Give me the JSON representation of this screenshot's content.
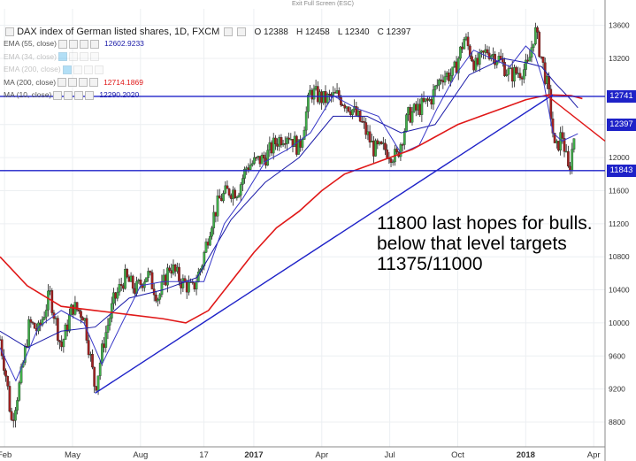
{
  "window": {
    "exit_fullscreen_label": "Exit Full Screen (ESC)"
  },
  "legend": {
    "title": "DAX index of German listed shares, 1D, FXCM",
    "ohlc": {
      "open": "O 12388",
      "high": "H 12458",
      "low": "L 12340",
      "close": "C 12397"
    },
    "indicators": [
      {
        "label": "EMA (55, close)",
        "value": "12602.9233",
        "color": "#1a1aa8",
        "active": false,
        "dim": false
      },
      {
        "label": "EMA (34, close)",
        "value": "",
        "color": "#999999",
        "active": true,
        "dim": true
      },
      {
        "label": "EMA (200, close)",
        "value": "",
        "color": "#999999",
        "active": true,
        "dim": true
      },
      {
        "label": "MA (200, close)",
        "value": "12714.1869",
        "color": "#e01818",
        "active": false,
        "dim": false
      },
      {
        "label": "MA (10, close)",
        "value": "12290.2020",
        "color": "#1a1aa8",
        "active": false,
        "dim": false
      }
    ]
  },
  "annotation": {
    "text": "11800 last hopes for bulls. below that level targets 11375/11000"
  },
  "price_tags": [
    {
      "label": "12741",
      "value": 12741,
      "color": "#1e22c8"
    },
    {
      "label": "12397",
      "value": 12397,
      "color": "#1e22c8"
    },
    {
      "label": "11843",
      "value": 11843,
      "color": "#1e22c8"
    }
  ],
  "chart_data": {
    "type": "line",
    "title": "DAX index of German listed shares, 1D, FXCM",
    "xlabel": "",
    "ylabel": "",
    "ylim": [
      8500,
      13800
    ],
    "y_ticks": [
      8800,
      9200,
      9600,
      10000,
      10400,
      10800,
      11200,
      11600,
      12000,
      12400,
      13200,
      13600
    ],
    "x_tick_labels": [
      "Feb",
      "May",
      "Aug",
      "17",
      "2017",
      "Apr",
      "Jul",
      "Oct",
      "2018",
      "Apr"
    ],
    "x_tick_positions": [
      0.5,
      3.5,
      6.5,
      9.3,
      11.5,
      14.5,
      17.5,
      20.5,
      23.5,
      26.5
    ],
    "xlim": [
      0.3,
      27.0
    ],
    "grid": true,
    "series": [
      {
        "name": "DAX",
        "style": "candles",
        "x": [
          0.3,
          0.6,
          0.8,
          1.2,
          1.6,
          2.0,
          2.5,
          3.0,
          3.5,
          4.0,
          4.5,
          4.9,
          5.3,
          5.8,
          6.3,
          6.8,
          7.3,
          7.8,
          8.3,
          8.8,
          9.2,
          9.6,
          10.0,
          10.4,
          10.8,
          11.2,
          11.6,
          12.0,
          12.5,
          13.0,
          13.5,
          14.0,
          14.6,
          15.2,
          15.8,
          16.3,
          16.8,
          17.3,
          17.8,
          18.3,
          18.8,
          19.3,
          19.8,
          20.3,
          20.8,
          21.3,
          21.8,
          22.3,
          22.8,
          23.3,
          23.6,
          23.9,
          24.2,
          24.5,
          24.8,
          25.1,
          25.4,
          25.7
        ],
        "values": [
          9800,
          9300,
          8800,
          9300,
          10000,
          9900,
          10350,
          9700,
          10200,
          10100,
          9200,
          9800,
          10250,
          10550,
          10400,
          10600,
          10300,
          10700,
          10500,
          10400,
          10700,
          11200,
          11500,
          11600,
          11600,
          11900,
          11950,
          12000,
          12200,
          12300,
          12100,
          12800,
          12700,
          12750,
          12600,
          12400,
          12100,
          12100,
          12000,
          12500,
          12600,
          12700,
          13000,
          13000,
          13450,
          13100,
          13300,
          13200,
          13000,
          13050,
          13100,
          13550,
          13200,
          12800,
          12050,
          12300,
          11800,
          12397
        ]
      },
      {
        "name": "EMA (55, close)",
        "style": "line",
        "x": [
          0.3,
          1.5,
          3.0,
          4.5,
          6.0,
          7.5,
          9.0,
          10.5,
          12.0,
          13.5,
          15.0,
          16.5,
          18.0,
          19.5,
          21.0,
          22.5,
          23.5,
          24.2,
          24.8,
          25.5,
          25.8
        ],
        "values": [
          9900,
          9700,
          9900,
          9950,
          10300,
          10400,
          10550,
          11250,
          11700,
          12000,
          12500,
          12500,
          12300,
          12400,
          13000,
          13200,
          13150,
          13100,
          12900,
          12700,
          12603
        ]
      },
      {
        "name": "MA (10, close)",
        "style": "line",
        "x": [
          0.3,
          1.0,
          2.0,
          3.0,
          4.0,
          4.8,
          5.6,
          6.5,
          7.5,
          8.5,
          9.3,
          10.2,
          11.0,
          12.0,
          13.0,
          14.0,
          15.0,
          16.0,
          17.0,
          18.0,
          18.8,
          19.6,
          20.4,
          21.2,
          22.0,
          22.8,
          23.5,
          23.9,
          24.3,
          24.7,
          25.1,
          25.5,
          25.8
        ],
        "values": [
          9700,
          9300,
          9950,
          10150,
          10000,
          9500,
          9950,
          10450,
          10500,
          10500,
          10500,
          11200,
          11500,
          11950,
          12100,
          12300,
          12750,
          12600,
          12500,
          12050,
          12150,
          12600,
          13000,
          13300,
          13200,
          13100,
          13350,
          13250,
          12900,
          12300,
          12200,
          12250,
          12290
        ]
      },
      {
        "name": "MA (200, close)",
        "style": "line",
        "x": [
          0.3,
          1.5,
          3.0,
          4.5,
          6.0,
          7.5,
          8.5,
          9.5,
          10.5,
          11.5,
          12.5,
          13.5,
          14.5,
          15.5,
          16.5,
          17.5,
          18.5,
          19.5,
          20.5,
          21.5,
          22.5,
          23.5,
          24.5,
          25.5,
          26.0
        ],
        "values": [
          10800,
          10450,
          10200,
          10150,
          10100,
          10050,
          10000,
          10150,
          10500,
          10850,
          11150,
          11350,
          11600,
          11800,
          11900,
          12000,
          12100,
          12250,
          12400,
          12500,
          12600,
          12700,
          12760,
          12750,
          12714
        ]
      }
    ],
    "trendlines": [
      {
        "name": "support-trendline",
        "color": "#1e22c8",
        "x": [
          4.5,
          24.7
        ],
        "values": [
          9150,
          12760
        ]
      },
      {
        "name": "resistance-level-12741",
        "color": "#1e22c8",
        "x": [
          0.3,
          27.0
        ],
        "values": [
          12741,
          12741
        ]
      },
      {
        "name": "resistance-level-11843",
        "color": "#1e22c8",
        "x": [
          0.3,
          27.0
        ],
        "values": [
          11843,
          11843
        ]
      },
      {
        "name": "descending-trendline",
        "color": "#e01818",
        "x": [
          24.4,
          27.0
        ],
        "values": [
          12760,
          12200
        ]
      }
    ]
  }
}
